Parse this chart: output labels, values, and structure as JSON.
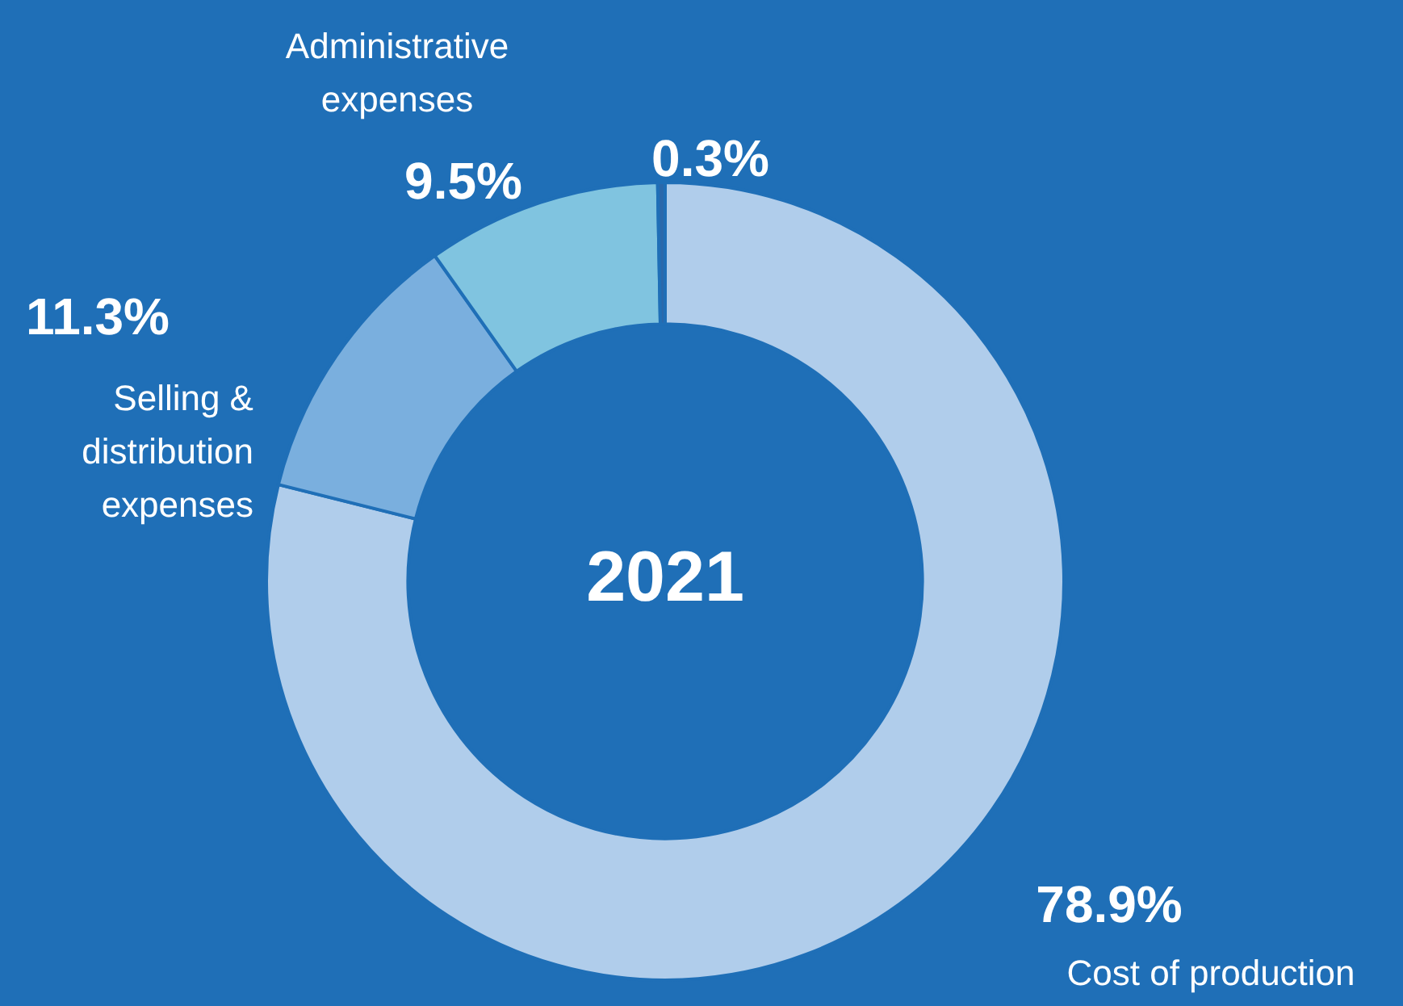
{
  "chart_data": {
    "type": "donut",
    "title": "2021",
    "categories": [
      "Cost of production",
      "Selling & distribution expenses",
      "Administrative expenses",
      null
    ],
    "values": [
      78.9,
      11.3,
      9.5,
      0.3
    ],
    "colors": [
      "#b0cdeb",
      "#7aafde",
      "#80c4e0",
      "#2a68ab"
    ],
    "value_labels": [
      "78.9%",
      "11.3%",
      "9.5%",
      "0.3%"
    ],
    "legend": false
  }
}
